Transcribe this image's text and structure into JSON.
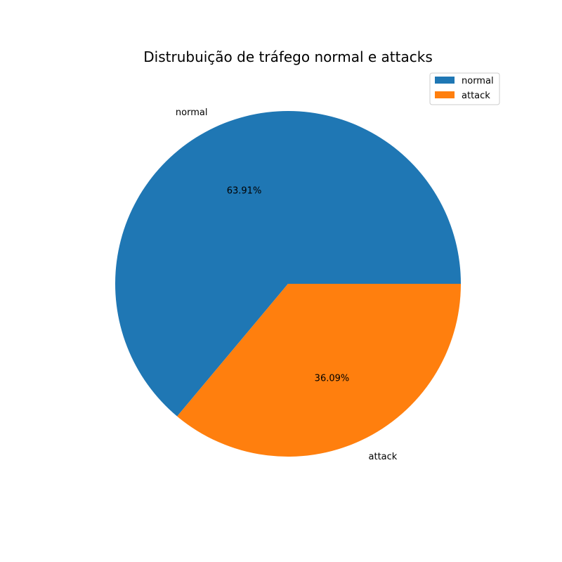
{
  "chart_data": {
    "type": "pie",
    "title": "Distrubuição de tráfego normal e attacks",
    "slices": [
      {
        "label": "normal",
        "value": 63.91,
        "pct_label": "63.91%",
        "color": "#1f77b4"
      },
      {
        "label": "attack",
        "value": 36.09,
        "pct_label": "36.09%",
        "color": "#ff7f0e"
      }
    ],
    "start_angle_deg": 0,
    "direction": "counterclockwise",
    "legend": {
      "placement": "upper-right",
      "entries": [
        "normal",
        "attack"
      ]
    }
  }
}
